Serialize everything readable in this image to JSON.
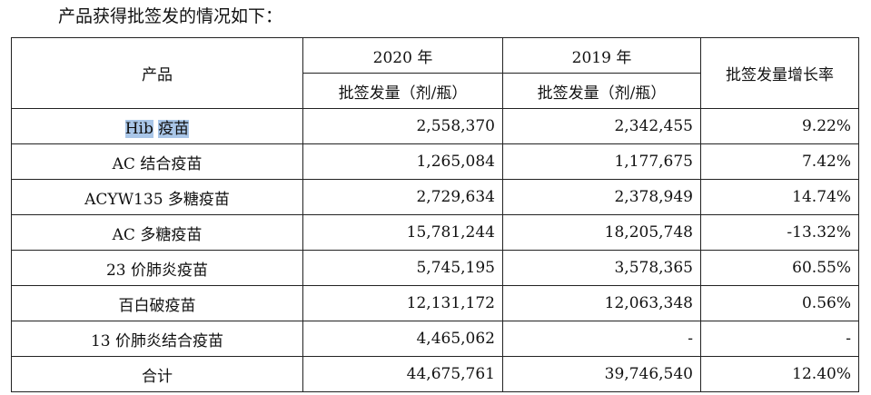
{
  "intro": "产品获得批签发的情况如下：",
  "table": {
    "col_product": "产品",
    "year_2020": "2020 年",
    "year_2019": "2019 年",
    "sub_2020": "批签发量（剂/瓶）",
    "sub_2019": "批签发量（剂/瓶）",
    "col_growth": "批签发量增长率",
    "rows": [
      {
        "prefix": "Hib",
        "suffix": "疫苗",
        "v2020": "2,558,370",
        "v2019": "2,342,455",
        "growth": "9.22%"
      },
      {
        "name": "AC 结合疫苗",
        "v2020": "1,265,084",
        "v2019": "1,177,675",
        "growth": "7.42%"
      },
      {
        "name": "ACYW135 多糖疫苗",
        "v2020": "2,729,634",
        "v2019": "2,378,949",
        "growth": "14.74%"
      },
      {
        "name": "AC 多糖疫苗",
        "v2020": "15,781,244",
        "v2019": "18,205,748",
        "growth": "-13.32%"
      },
      {
        "name": "23 价肺炎疫苗",
        "v2020": "5,745,195",
        "v2019": "3,578,365",
        "growth": "60.55%"
      },
      {
        "name": "百白破疫苗",
        "v2020": "12,131,172",
        "v2019": "12,063,348",
        "growth": "0.56%"
      },
      {
        "name": "13 价肺炎结合疫苗",
        "v2020": "4,465,062",
        "v2019": "-",
        "growth": "-"
      },
      {
        "name": "合计",
        "v2020": "44,675,761",
        "v2019": "39,746,540",
        "growth": "12.40%"
      }
    ]
  },
  "highlight_color": "#a9c6e8"
}
